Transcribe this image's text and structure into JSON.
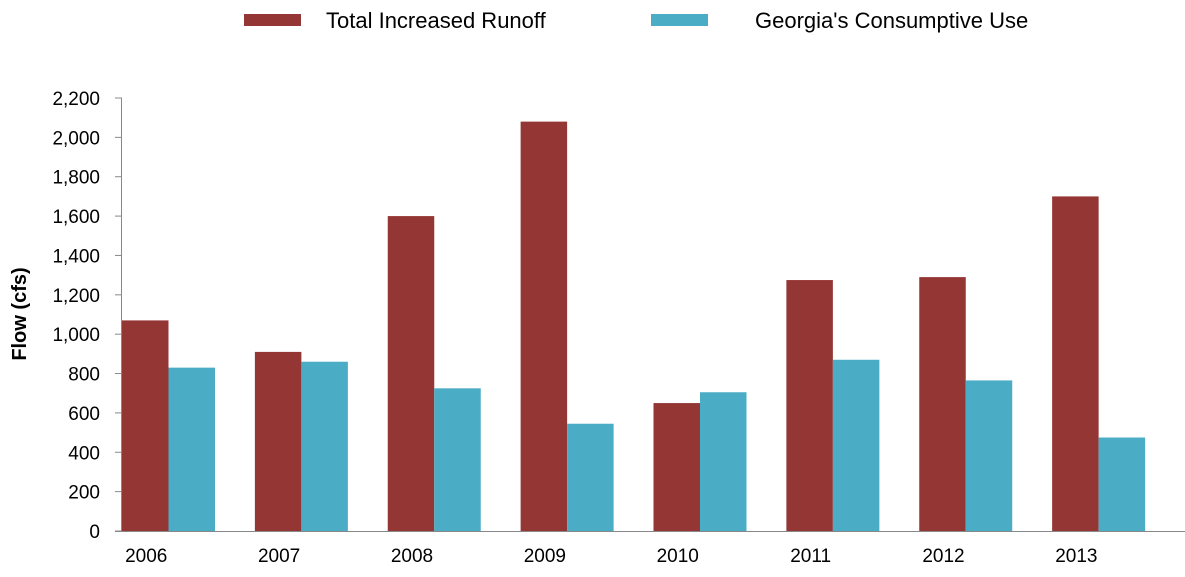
{
  "chart_data": {
    "type": "bar",
    "title": "",
    "xlabel": "",
    "ylabel": "Flow (cfs)",
    "ylim": [
      0,
      2200
    ],
    "yticks": [
      0,
      200,
      400,
      600,
      800,
      1000,
      1200,
      1400,
      1600,
      1800,
      2000,
      2200
    ],
    "ytick_labels": [
      "0",
      "200",
      "400",
      "600",
      "800",
      "1,000",
      "1,200",
      "1,400",
      "1,600",
      "1,800",
      "2,000",
      "2,200"
    ],
    "categories": [
      "2006",
      "2007",
      "2008",
      "2009",
      "2010",
      "2011",
      "2012",
      "2013"
    ],
    "series": [
      {
        "name": "Total Increased Runoff",
        "color": "#943634",
        "values": [
          1070,
          910,
          1600,
          2080,
          650,
          1275,
          1290,
          1700
        ]
      },
      {
        "name": "Georgia's Consumptive Use",
        "color": "#4BACC6",
        "values": [
          830,
          860,
          725,
          545,
          705,
          870,
          765,
          475
        ]
      }
    ],
    "legend_position": "top-center",
    "grid": false
  }
}
